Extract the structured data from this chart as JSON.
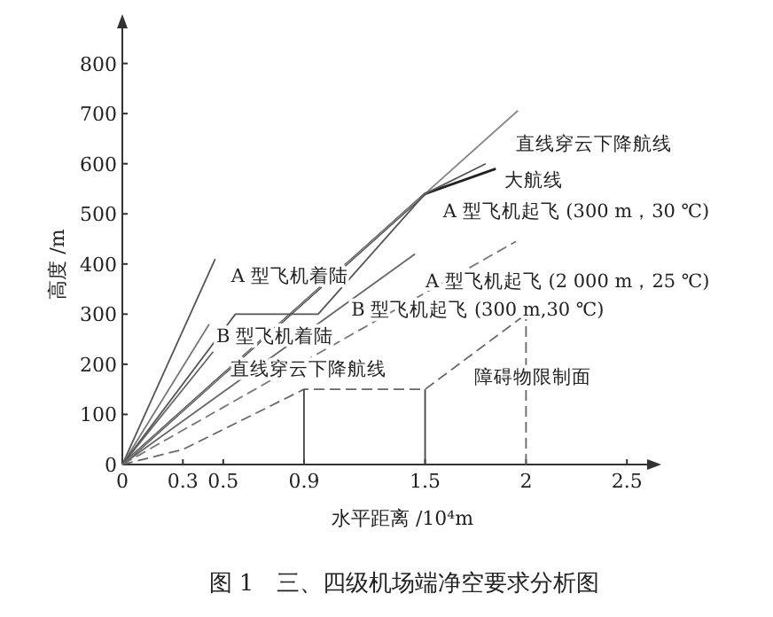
{
  "chart_data": {
    "type": "line",
    "title": "图 1　三、四级机场端净空要求分析图",
    "xlabel": "水平距离 /10⁴m",
    "ylabel": "高度 /m",
    "xlim": [
      0,
      2.6
    ],
    "ylim": [
      0,
      870
    ],
    "xticks": [
      0,
      0.3,
      0.5,
      0.9,
      1.5,
      2,
      2.5
    ],
    "yticks": [
      0,
      100,
      200,
      300,
      400,
      500,
      600,
      700,
      800
    ],
    "grid": false,
    "marker": "none",
    "series": [
      {
        "name": "A 型飞机着陆",
        "color": "#555555",
        "x": [
          0,
          0.46
        ],
        "values": [
          0,
          410
        ]
      },
      {
        "name": "B 型飞机着陆",
        "color": "#777777",
        "x": [
          0,
          0.43
        ],
        "values": [
          0,
          280
        ]
      },
      {
        "name": "直线穿云下降航线",
        "color": "#666666",
        "x": [
          0,
          0.45
        ],
        "values": [
          0,
          225
        ]
      },
      {
        "name": "大航线",
        "color": "#222222",
        "x": [
          0,
          1.5,
          1.85
        ],
        "values": [
          0,
          540,
          590
        ]
      },
      {
        "name": "直线穿云下降航线",
        "color": "#888888",
        "x": [
          0,
          1.96
        ],
        "values": [
          0,
          706
        ]
      },
      {
        "name": "A 型飞机起飞 (300 m，30 ℃)",
        "color": "#555555",
        "x": [
          0,
          0.56,
          0.97,
          1.5,
          1.8
        ],
        "values": [
          0,
          300,
          300,
          540,
          600
        ]
      },
      {
        "name": "A 型飞机起飞 (2 000 m，25 ℃)",
        "color": "#777777",
        "line_style": "dashed",
        "x": [
          0,
          1.95
        ],
        "values": [
          0,
          445
        ]
      },
      {
        "name": "B 型飞机起飞 (300 m,30 ℃)",
        "color": "#666666",
        "x": [
          0,
          1.45
        ],
        "values": [
          0,
          420
        ]
      },
      {
        "name": "障碍物限制面",
        "color": "#666666",
        "line_style": "dashed",
        "x": [
          0,
          0.3,
          0.9,
          1.5,
          2.0
        ],
        "values": [
          0,
          30,
          150,
          150,
          300
        ]
      },
      {
        "color": "#444444",
        "x": [
          0.9,
          0.9
        ],
        "values": [
          0,
          150
        ]
      },
      {
        "color": "#444444",
        "x": [
          1.5,
          1.5
        ],
        "values": [
          0,
          150
        ]
      },
      {
        "color": "#666666",
        "line_style": "dashed",
        "x": [
          2,
          2
        ],
        "values": [
          0,
          300
        ]
      }
    ]
  }
}
